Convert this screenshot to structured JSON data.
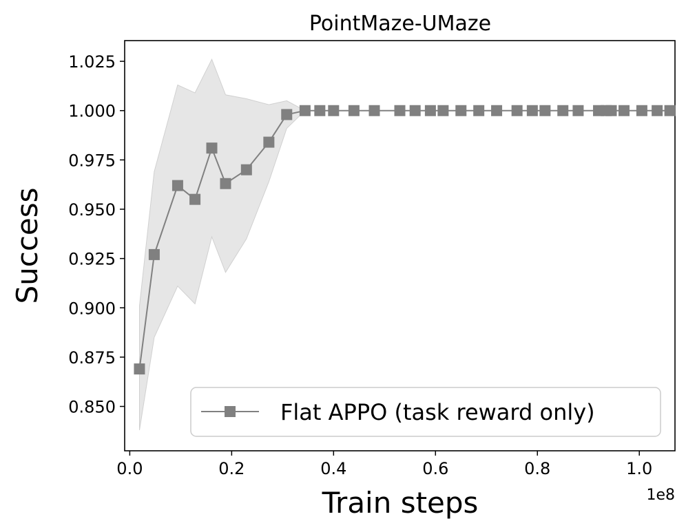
{
  "chart_data": {
    "type": "line",
    "title": "PointMaze-UMaze",
    "xlabel": "Train steps",
    "ylabel": "Success",
    "x_offset_label": "1e8",
    "xlim": [
      -0.01,
      1.07
    ],
    "ylim": [
      0.8275,
      1.0355
    ],
    "xticks": [
      0.0,
      0.2,
      0.4,
      0.6,
      0.8,
      1.0
    ],
    "xtick_labels": [
      "0.0",
      "0.2",
      "0.4",
      "0.6",
      "0.8",
      "1.0"
    ],
    "yticks": [
      0.85,
      0.875,
      0.9,
      0.925,
      0.95,
      0.975,
      1.0,
      1.025
    ],
    "ytick_labels": [
      "0.850",
      "0.875",
      "0.900",
      "0.925",
      "0.950",
      "0.975",
      "1.000",
      "1.025"
    ],
    "grid": false,
    "legend_position": "lower-right",
    "series": [
      {
        "name": "Flat APPO (task reward only)",
        "color": "#808080",
        "band_color": "#e6e6e6",
        "marker": "square",
        "x": [
          0.019,
          0.048,
          0.094,
          0.128,
          0.161,
          0.188,
          0.229,
          0.273,
          0.308,
          0.344,
          0.373,
          0.4,
          0.44,
          0.48,
          0.53,
          0.56,
          0.59,
          0.615,
          0.65,
          0.685,
          0.72,
          0.76,
          0.79,
          0.815,
          0.85,
          0.88,
          0.92,
          0.935,
          0.945,
          0.97,
          1.005,
          1.035,
          1.06
        ],
        "y": [
          0.869,
          0.927,
          0.962,
          0.955,
          0.981,
          0.963,
          0.97,
          0.984,
          0.998,
          1.0,
          1.0,
          1.0,
          1.0,
          1.0,
          1.0,
          1.0,
          1.0,
          1.0,
          1.0,
          1.0,
          1.0,
          1.0,
          1.0,
          1.0,
          1.0,
          1.0,
          1.0,
          1.0,
          1.0,
          1.0,
          1.0,
          1.0,
          1.0
        ],
        "band_upper": [
          0.901,
          0.969,
          1.013,
          1.009,
          1.026,
          1.008,
          1.006,
          1.003,
          1.005,
          1.0,
          1.0,
          1.0,
          1.0,
          1.0,
          1.0,
          1.0,
          1.0,
          1.0,
          1.0,
          1.0,
          1.0,
          1.0,
          1.0,
          1.0,
          1.0,
          1.0,
          1.0,
          1.0,
          1.0,
          1.0,
          1.0,
          1.0,
          1.0
        ],
        "band_lower": [
          0.838,
          0.885,
          0.911,
          0.902,
          0.936,
          0.918,
          0.935,
          0.964,
          0.991,
          1.0,
          1.0,
          1.0,
          1.0,
          1.0,
          1.0,
          1.0,
          1.0,
          1.0,
          1.0,
          1.0,
          1.0,
          1.0,
          1.0,
          1.0,
          1.0,
          1.0,
          1.0,
          1.0,
          1.0,
          1.0,
          1.0,
          1.0,
          1.0
        ]
      }
    ]
  }
}
